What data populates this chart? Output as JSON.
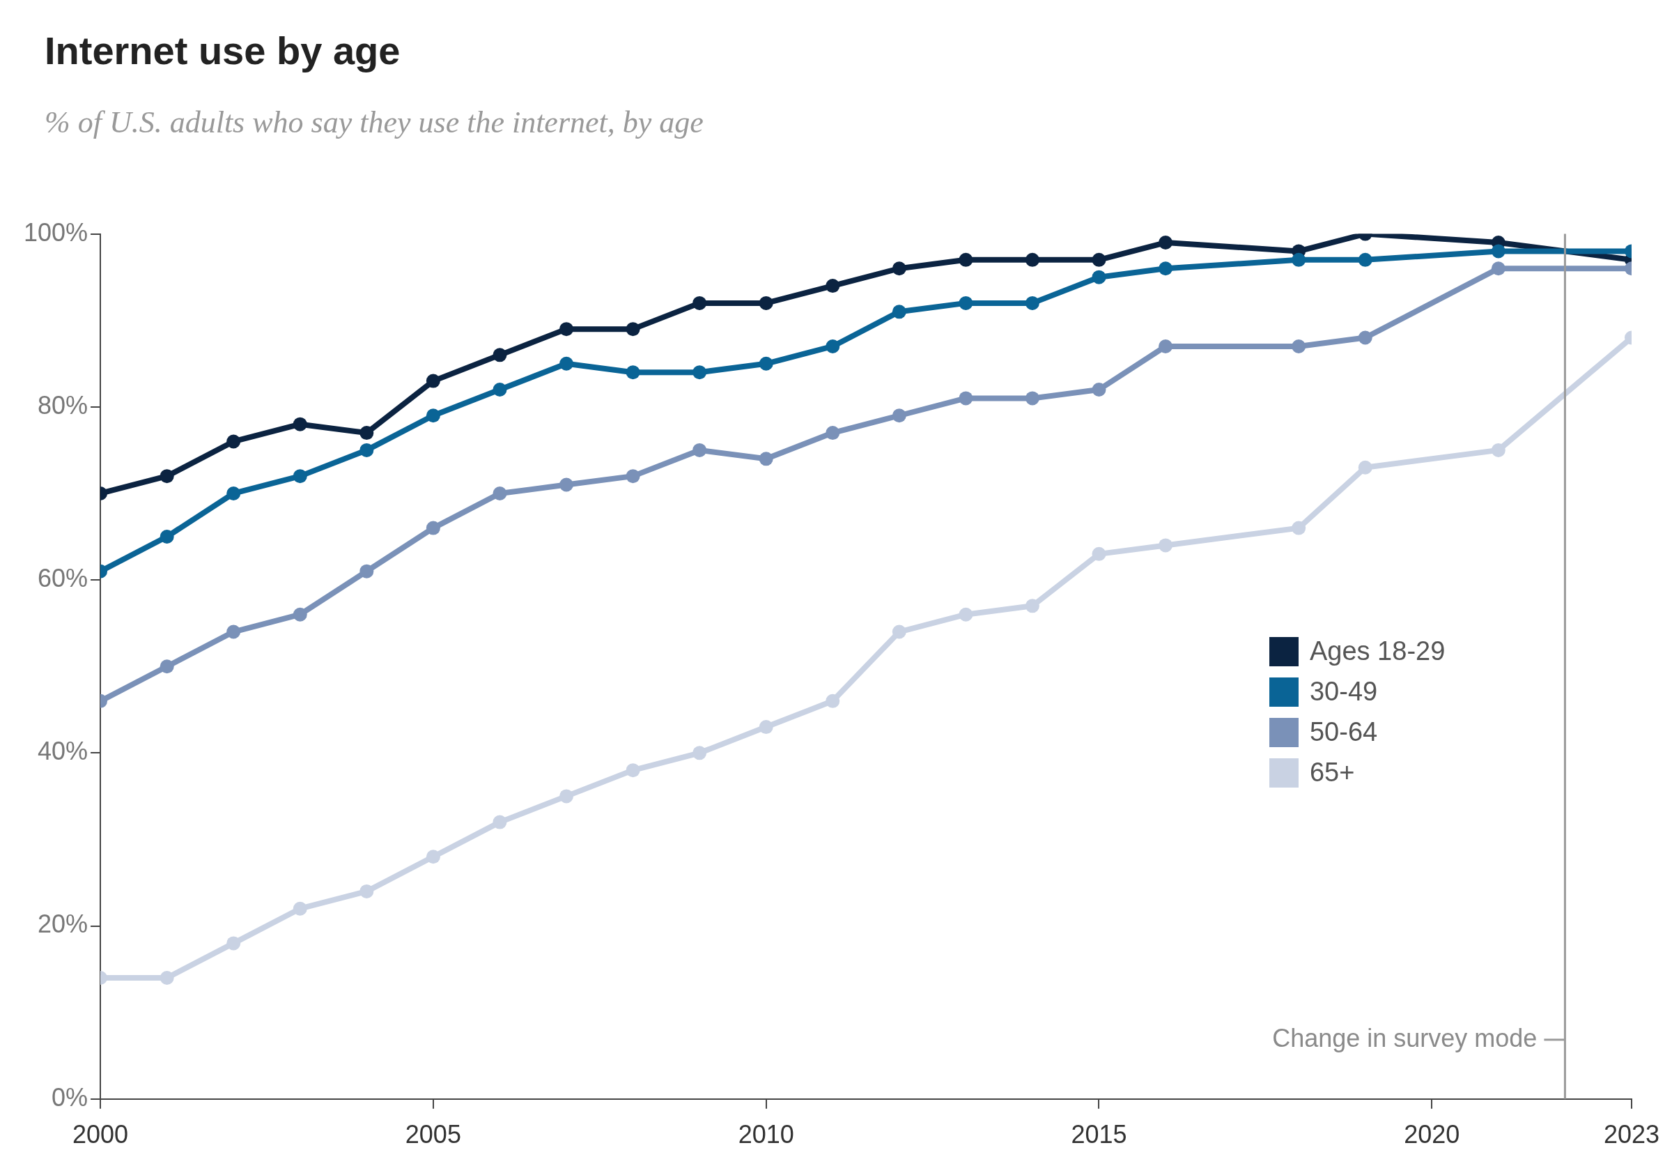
{
  "chart_data": {
    "type": "line",
    "title": "Internet use by age",
    "subtitle": "% of U.S. adults who say they use the internet, by age",
    "x": [
      2000,
      2001,
      2002,
      2003,
      2004,
      2005,
      2006,
      2007,
      2008,
      2009,
      2010,
      2011,
      2012,
      2013,
      2014,
      2015,
      2016,
      2018,
      2019,
      2021,
      2023
    ],
    "series": [
      {
        "name": "Ages 18-29",
        "color": "#0b2341",
        "values": [
          70,
          72,
          76,
          78,
          77,
          83,
          86,
          89,
          89,
          92,
          92,
          94,
          96,
          97,
          97,
          97,
          99,
          98,
          100,
          99,
          97
        ]
      },
      {
        "name": "30-49",
        "color": "#0a6496",
        "values": [
          61,
          65,
          70,
          72,
          75,
          79,
          82,
          85,
          84,
          84,
          85,
          87,
          91,
          92,
          92,
          95,
          96,
          97,
          97,
          98,
          98
        ]
      },
      {
        "name": "50-64",
        "color": "#7a91b8",
        "values": [
          46,
          50,
          54,
          56,
          61,
          66,
          70,
          71,
          72,
          75,
          74,
          77,
          79,
          81,
          81,
          82,
          87,
          87,
          88,
          96,
          96
        ]
      },
      {
        "name": "65+",
        "color": "#c9d2e3",
        "values": [
          14,
          14,
          18,
          22,
          24,
          28,
          32,
          35,
          38,
          40,
          43,
          46,
          54,
          56,
          57,
          63,
          64,
          66,
          73,
          75,
          88
        ]
      }
    ],
    "xlim": [
      2000,
      2023
    ],
    "xticks": [
      2000,
      2005,
      2010,
      2015,
      2020,
      2023
    ],
    "ylim": [
      0,
      100
    ],
    "yticks": [
      {
        "value": 0,
        "label": "0%"
      },
      {
        "value": 20,
        "label": "20%"
      },
      {
        "value": 40,
        "label": "40%"
      },
      {
        "value": 60,
        "label": "60%"
      },
      {
        "value": 80,
        "label": "80%"
      },
      {
        "value": 100,
        "label": "100%"
      }
    ],
    "ref_lines": [
      {
        "axis": "x",
        "value": 2022,
        "label": "Change in survey mode",
        "color": "#9a9a9a"
      }
    ],
    "legend": "right",
    "marker": "circle",
    "line_style": "solid"
  }
}
